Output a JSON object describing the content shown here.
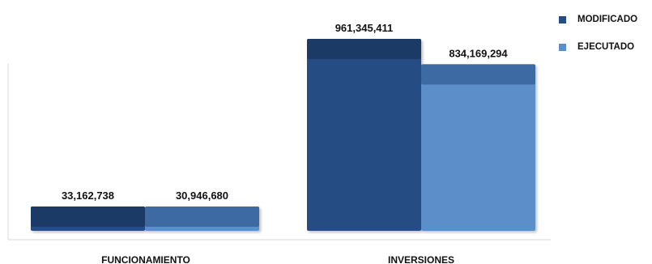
{
  "chart_data": {
    "type": "bar",
    "title": "",
    "xlabel": "",
    "ylabel": "",
    "categories": [
      "FUNCIONAMIENTO",
      "INVERSIONES"
    ],
    "series": [
      {
        "name": "MODIFICADO",
        "color": "#264d83",
        "top_color": "#1c3a66",
        "values": [
          33162738,
          961345411
        ],
        "labels": [
          "33,162,738",
          "961,345,411"
        ]
      },
      {
        "name": "EJECUTADO",
        "color": "#5b8fc9",
        "top_color": "#3d6aa3",
        "values": [
          30946680,
          834169294
        ],
        "labels": [
          "30,946,680",
          "834,169,294"
        ]
      }
    ],
    "ylim": [
      0,
      1000000000
    ],
    "grid": false,
    "legend_position": "top-right"
  }
}
